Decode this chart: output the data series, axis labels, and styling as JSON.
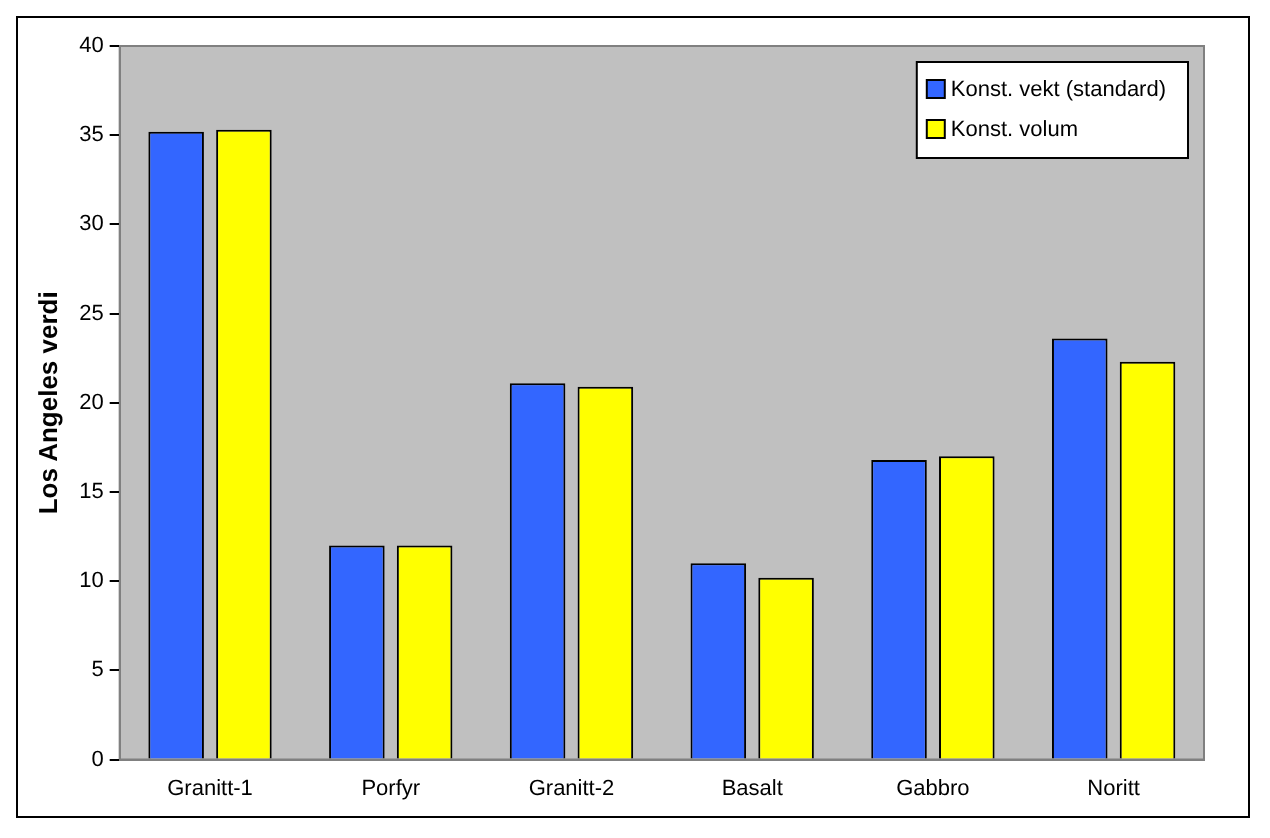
{
  "chart_data": {
    "type": "bar",
    "ylabel": "Los Angeles verdi",
    "categories": [
      "Granitt-1",
      "Porfyr",
      "Granitt-2",
      "Basalt",
      "Gabbro",
      "Noritt"
    ],
    "series": [
      {
        "name": "Konst. vekt (standard)",
        "color": "#3366ff",
        "values": [
          35.2,
          12.0,
          21.1,
          11.0,
          16.8,
          23.6
        ]
      },
      {
        "name": "Konst. volum",
        "color": "#ffff00",
        "values": [
          35.3,
          12.0,
          20.9,
          10.2,
          17.0,
          22.3
        ]
      }
    ],
    "ylim": [
      0,
      40
    ],
    "yticks": [
      0,
      5,
      10,
      15,
      20,
      25,
      30,
      35,
      40
    ],
    "grid": false,
    "legend": "top right"
  }
}
